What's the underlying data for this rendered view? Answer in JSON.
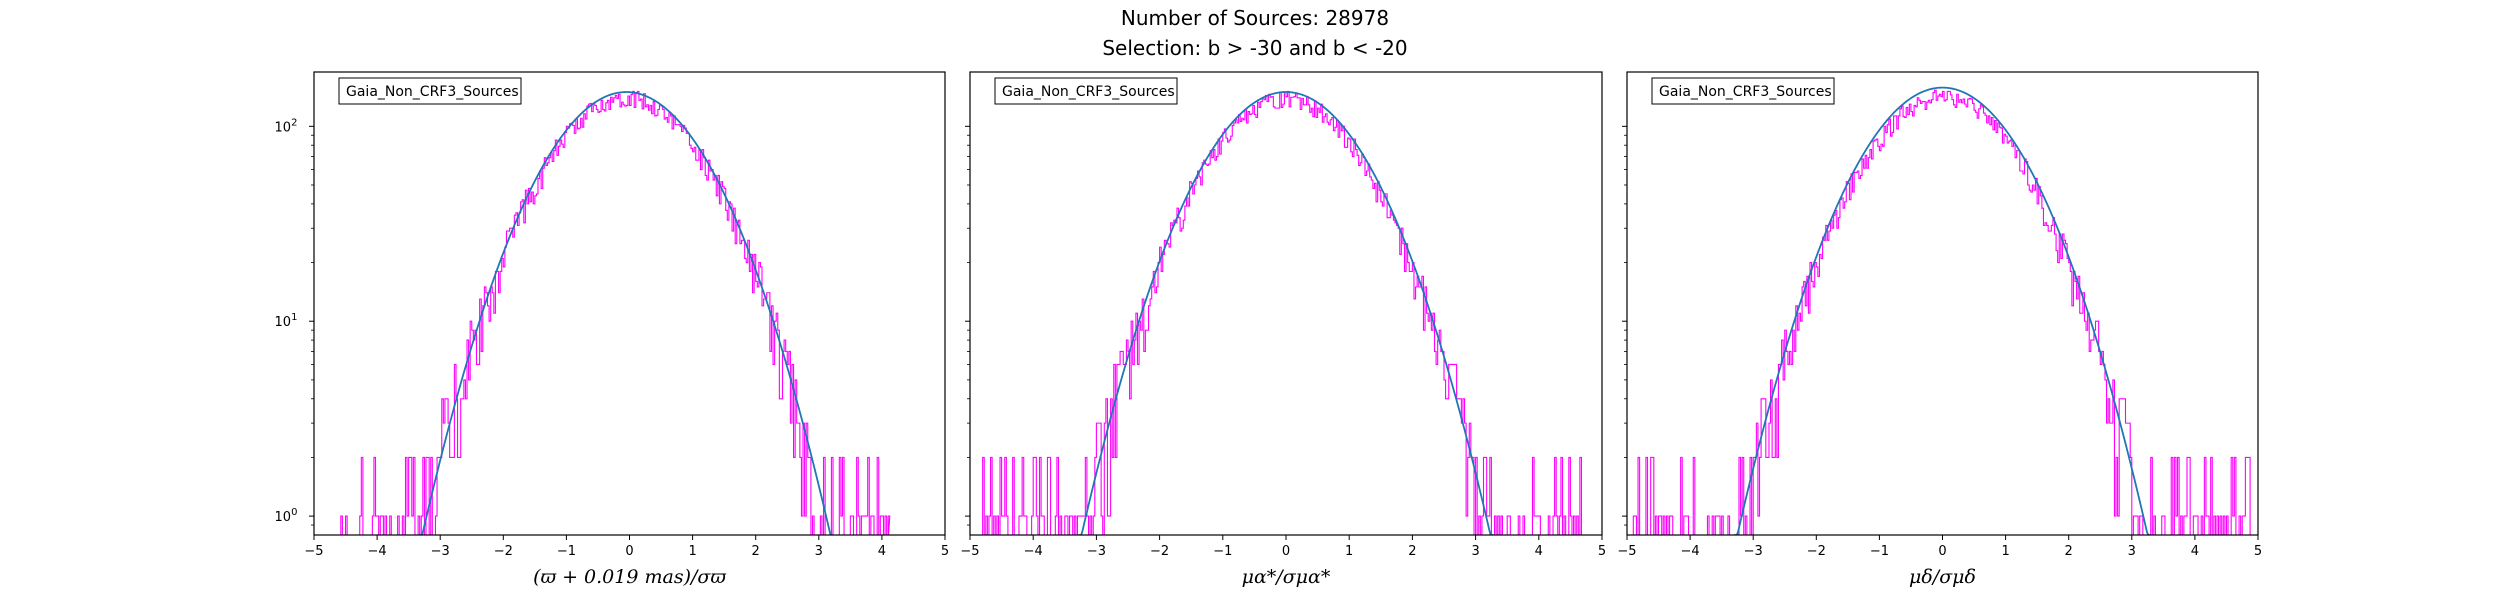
{
  "figure": {
    "title_line1": "Number of Sources: 28978",
    "title_line2": "Selection: b > -30 and b < -20"
  },
  "colors": {
    "histogram": "#ff00ff",
    "fit_curve": "#1f77b4",
    "fit_curve_alt": "#008080",
    "axes": "#000000",
    "background": "#ffffff"
  },
  "chart_data": [
    {
      "type": "histogram",
      "legend": "Gaia_Non_CRF3_Sources",
      "xlabel": "(ϖ + 0.019 mas)/σϖ",
      "ylabel": "",
      "xlim": [
        -5,
        5
      ],
      "ylim": [
        0.8,
        190
      ],
      "yscale": "log",
      "xticks": [
        -5,
        -4,
        -3,
        -2,
        -1,
        0,
        1,
        2,
        3,
        4,
        5
      ],
      "yticks": [
        {
          "value": 1,
          "base": "10",
          "exp": "0"
        },
        {
          "value": 10,
          "base": "10",
          "exp": "1"
        },
        {
          "value": 100,
          "base": "10",
          "exp": "2"
        }
      ],
      "hist_range": [
        -4.6,
        4.1
      ],
      "peak_counts": 140,
      "gaussian_fit": {
        "mean": -0.05,
        "sigma": 1.0,
        "amplitude": 150
      },
      "series": [
        {
          "kind": "histogram",
          "color": "#ff00ff"
        },
        {
          "kind": "gaussian_fit",
          "color": "#1f77b4"
        }
      ]
    },
    {
      "type": "histogram",
      "legend": "Gaia_Non_CRF3_Sources",
      "xlabel": "μα*/σμα*",
      "ylabel": "",
      "xlim": [
        -5,
        5
      ],
      "ylim": [
        0.8,
        190
      ],
      "yscale": "log",
      "xticks": [
        -5,
        -4,
        -3,
        -2,
        -1,
        0,
        1,
        2,
        3,
        4,
        5
      ],
      "yticks": [
        {
          "value": 1,
          "base": "10",
          "exp": "0"
        },
        {
          "value": 10,
          "base": "10",
          "exp": "1"
        },
        {
          "value": 100,
          "base": "10",
          "exp": "2"
        }
      ],
      "hist_range": [
        -4.8,
        4.7
      ],
      "peak_counts": 138,
      "gaussian_fit": {
        "mean": 0.0,
        "sigma": 1.0,
        "amplitude": 150
      },
      "series": [
        {
          "kind": "histogram",
          "color": "#ff00ff"
        },
        {
          "kind": "gaussian_fit",
          "color": "#1f77b4"
        }
      ]
    },
    {
      "type": "histogram",
      "legend": "Gaia_Non_CRF3_Sources",
      "xlabel": "μδ/σμδ",
      "ylabel": "",
      "xlim": [
        -5,
        5
      ],
      "ylim": [
        0.8,
        190
      ],
      "yscale": "log",
      "xticks": [
        -5,
        -4,
        -3,
        -2,
        -1,
        0,
        1,
        2,
        3,
        4,
        5
      ],
      "yticks": [
        {
          "value": 1,
          "base": "10",
          "exp": "0"
        },
        {
          "value": 10,
          "base": "10",
          "exp": "1"
        },
        {
          "value": 100,
          "base": "10",
          "exp": "2"
        }
      ],
      "hist_range": [
        -4.9,
        5.0
      ],
      "peak_counts": 140,
      "gaussian_fit": {
        "mean": 0.0,
        "sigma": 1.0,
        "amplitude": 158
      },
      "series": [
        {
          "kind": "histogram",
          "color": "#ff00ff"
        },
        {
          "kind": "gaussian_fit",
          "color": "#1f77b4"
        }
      ]
    }
  ]
}
